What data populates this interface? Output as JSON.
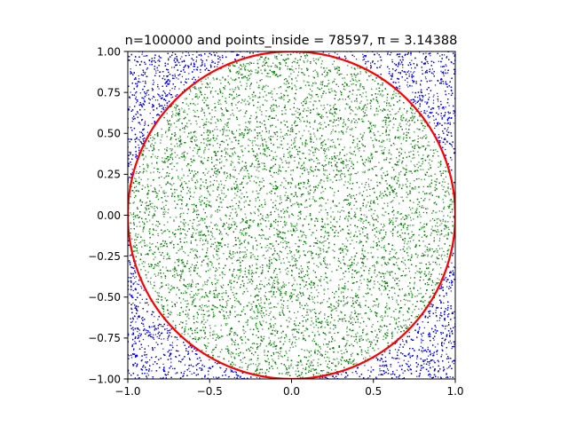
{
  "chart_data": {
    "type": "scatter",
    "title": "n=100000 and points_inside = 78597, π = 3.14388",
    "xlabel": "",
    "ylabel": "",
    "xlim": [
      -1.0,
      1.0
    ],
    "ylim": [
      -1.0,
      1.0
    ],
    "xticks": [
      -1.0,
      -0.5,
      0.0,
      0.5,
      1.0
    ],
    "xtick_labels": [
      "−1.0",
      "−0.5",
      "0.0",
      "0.5",
      "1.0"
    ],
    "yticks": [
      -1.0,
      -0.75,
      -0.5,
      -0.25,
      0.0,
      0.25,
      0.5,
      0.75,
      1.0
    ],
    "ytick_labels": [
      "−1.00",
      "−0.75",
      "−0.50",
      "−0.25",
      "0.00",
      "0.25",
      "0.50",
      "0.75",
      "1.00"
    ],
    "grid": false,
    "n": 100000,
    "points_inside": 78597,
    "pi_estimate": 3.14388,
    "series": [
      {
        "color": "#0000ff",
        "region": "outside unit circle",
        "marker": "point",
        "distribution": "uniform random"
      },
      {
        "color": "#008000",
        "region": "inside unit circle",
        "marker": "point",
        "distribution": "uniform random"
      }
    ],
    "circle": {
      "center": [
        0,
        0
      ],
      "radius": 1,
      "color": "#ff0000"
    }
  }
}
